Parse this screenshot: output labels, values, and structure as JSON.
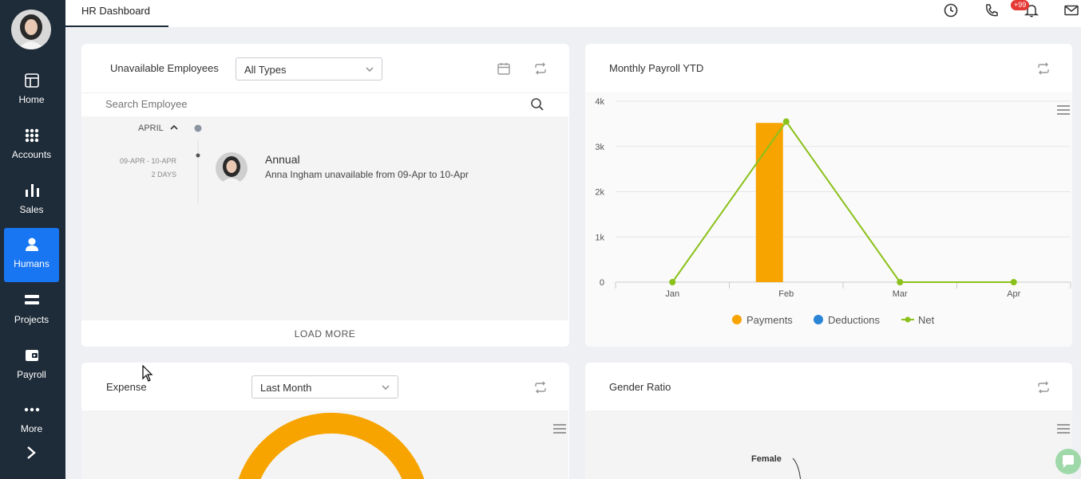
{
  "sidebar": {
    "items": [
      {
        "label": "Home",
        "icon": "home-icon"
      },
      {
        "label": "Accounts",
        "icon": "grid-icon"
      },
      {
        "label": "Sales",
        "icon": "bar-chart-icon"
      },
      {
        "label": "Humans",
        "icon": "person-icon"
      },
      {
        "label": "Projects",
        "icon": "stack-icon"
      },
      {
        "label": "Payroll",
        "icon": "wallet-icon"
      },
      {
        "label": "More",
        "icon": "more-dots-icon"
      }
    ],
    "active": "Humans",
    "active_color": "#1976f2",
    "bg_color": "#1e2b38"
  },
  "header": {
    "tab_label": "HR Dashboard",
    "notification_badge": "+99"
  },
  "unavailable": {
    "title": "Unavailable Employees",
    "filter_value": "All Types",
    "search_placeholder": "Search Employee",
    "month": "APRIL",
    "entries": [
      {
        "date_range": "09-APR - 10-APR",
        "duration": "2 DAYS",
        "type": "Annual",
        "description": "Anna Ingham unavailable from 09-Apr to 10-Apr"
      }
    ],
    "load_more": "LOAD MORE"
  },
  "payroll": {
    "title": "Monthly Payroll YTD",
    "legend": [
      "Payments",
      "Deductions",
      "Net"
    ],
    "colors": {
      "payments": "#f7a400",
      "deductions": "#2a85d6",
      "net": "#8ac11a"
    }
  },
  "expense": {
    "title": "Expense",
    "filter_value": "Last Month"
  },
  "gender": {
    "title": "Gender Ratio",
    "label_female": "Female"
  },
  "chart_data": {
    "type": "bar",
    "categories": [
      "Jan",
      "Feb",
      "Mar",
      "Apr"
    ],
    "series": [
      {
        "name": "Payments",
        "type": "bar",
        "values": [
          0,
          3520,
          0,
          0
        ]
      },
      {
        "name": "Deductions",
        "type": "bar",
        "values": [
          0,
          0,
          0,
          0
        ]
      },
      {
        "name": "Net",
        "type": "line",
        "values": [
          0,
          3550,
          0,
          0
        ]
      }
    ],
    "ylim": [
      0,
      4000
    ],
    "yticks": [
      "0",
      "1k",
      "2k",
      "3k",
      "4k"
    ],
    "grid": true,
    "legend_position": "bottom"
  }
}
